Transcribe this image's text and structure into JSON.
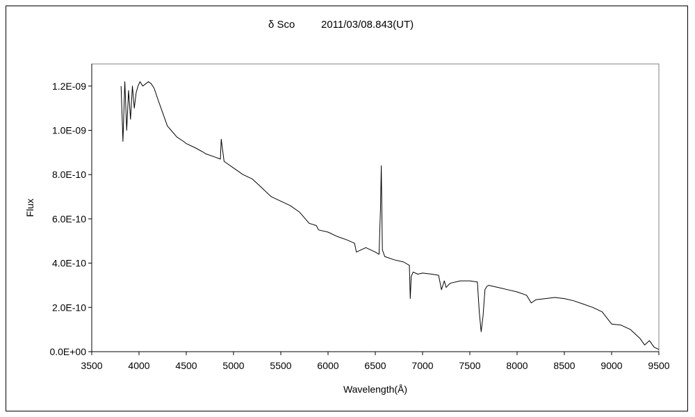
{
  "chart_data": {
    "type": "line",
    "title": "δ Sco 2011/03/08.843(UT)",
    "title_object": "δ Sco",
    "title_date": "2011/03/08.843(UT)",
    "xlabel": "Wavelength(Å)",
    "ylabel": "Flux",
    "xlim": [
      3500,
      9500
    ],
    "ylim": [
      0,
      1.3e-09
    ],
    "grid": false,
    "legend": "none",
    "x_ticks": [
      3500,
      4000,
      4500,
      5000,
      5500,
      6000,
      6500,
      7000,
      7500,
      8000,
      8500,
      9000,
      9500
    ],
    "x_tick_labels": [
      "3500",
      "4000",
      "4500",
      "5000",
      "5500",
      "6000",
      "6500",
      "7000",
      "7500",
      "8000",
      "8500",
      "9000",
      "9500"
    ],
    "y_ticks": [
      0,
      2e-10,
      4e-10,
      6e-10,
      8e-10,
      1e-09,
      1.2e-09
    ],
    "y_tick_labels": [
      "0.0E+00",
      "2.0E-10",
      "4.0E-10",
      "6.0E-10",
      "8.0E-10",
      "1.0E-09",
      "1.2E-09"
    ],
    "line_color": "#000000",
    "series": [
      {
        "x": [
          3810,
          3830,
          3850,
          3870,
          3890,
          3910,
          3930,
          3950,
          3970,
          3990,
          4010,
          4040,
          4070,
          4100,
          4130,
          4160,
          4200,
          4250,
          4300,
          4340,
          4400,
          4471,
          4500,
          4600,
          4686,
          4700,
          4800,
          4861,
          4870,
          4900,
          5000,
          5100,
          5200,
          5300,
          5400,
          5500,
          5600,
          5700,
          5800,
          5876,
          5900,
          6000,
          6100,
          6200,
          6280,
          6300,
          6400,
          6500,
          6540,
          6555,
          6563,
          6575,
          6600,
          6700,
          6800,
          6860,
          6870,
          6880,
          6900,
          6950,
          7000,
          7100,
          7170,
          7200,
          7230,
          7250,
          7280,
          7300,
          7400,
          7500,
          7580,
          7600,
          7620,
          7640,
          7660,
          7680,
          7700,
          7800,
          7900,
          8000,
          8100,
          8150,
          8200,
          8300,
          8400,
          8500,
          8600,
          8700,
          8800,
          8900,
          9000,
          9100,
          9200,
          9300,
          9350,
          9400,
          9450,
          9500
        ],
        "y": [
          1.2e-09,
          9.5e-10,
          1.22e-09,
          1e-09,
          1.18e-09,
          1.05e-09,
          1.2e-09,
          1.1e-09,
          1.17e-09,
          1.2e-09,
          1.22e-09,
          1.2e-09,
          1.21e-09,
          1.22e-09,
          1.21e-09,
          1.19e-09,
          1.14e-09,
          1.08e-09,
          1.02e-09,
          1e-09,
          9.7e-10,
          9.5e-10,
          9.4e-10,
          9.2e-10,
          9e-10,
          8.95e-10,
          8.8e-10,
          8.7e-10,
          9.6e-10,
          8.6e-10,
          8.3e-10,
          8e-10,
          7.8e-10,
          7.4e-10,
          7e-10,
          6.8e-10,
          6.6e-10,
          6.3e-10,
          5.8e-10,
          5.7e-10,
          5.5e-10,
          5.4e-10,
          5.2e-10,
          5.05e-10,
          4.9e-10,
          4.5e-10,
          4.7e-10,
          4.5e-10,
          4.4e-10,
          6.5e-10,
          8.4e-10,
          4.6e-10,
          4.3e-10,
          4.15e-10,
          4.05e-10,
          3.9e-10,
          2.4e-10,
          3.4e-10,
          3.6e-10,
          3.5e-10,
          3.55e-10,
          3.5e-10,
          3.45e-10,
          2.8e-10,
          3.2e-10,
          2.9e-10,
          3.05e-10,
          3.1e-10,
          3.2e-10,
          3.2e-10,
          3.15e-10,
          1.8e-10,
          9e-11,
          1.6e-10,
          2.8e-10,
          2.95e-10,
          3e-10,
          2.9e-10,
          2.8e-10,
          2.7e-10,
          2.55e-10,
          2.2e-10,
          2.35e-10,
          2.4e-10,
          2.45e-10,
          2.4e-10,
          2.3e-10,
          2.15e-10,
          2e-10,
          1.8e-10,
          1.25e-10,
          1.2e-10,
          1e-10,
          6e-11,
          3e-11,
          5e-11,
          2e-11,
          1e-11
        ]
      }
    ]
  }
}
